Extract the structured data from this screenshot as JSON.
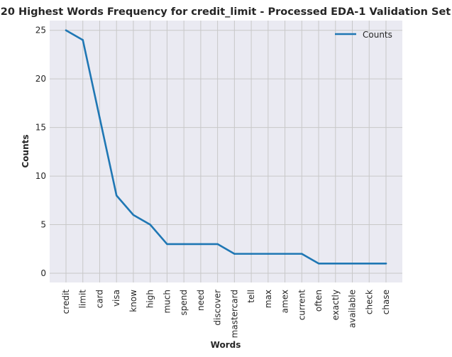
{
  "chart_data": {
    "type": "line",
    "title": "20 Highest Words Frequency for credit_limit - Processed EDA-1 Validation Set",
    "xlabel": "Words",
    "ylabel": "Counts",
    "ylim": [
      0,
      26
    ],
    "yticks": [
      0,
      5,
      10,
      15,
      20,
      25
    ],
    "grid": true,
    "legend_position": "top-right",
    "categories": [
      "credit",
      "limit",
      "card",
      "visa",
      "know",
      "high",
      "much",
      "spend",
      "need",
      "discover",
      "mastercard",
      "tell",
      "max",
      "amex",
      "current",
      "often",
      "exactly",
      "available",
      "check",
      "chase"
    ],
    "series": [
      {
        "name": "Counts",
        "color": "#1f77b4",
        "values": [
          25,
          24,
          16,
          8,
          6,
          5,
          3,
          3,
          3,
          3,
          2,
          2,
          2,
          2,
          2,
          1,
          1,
          1,
          1,
          1
        ]
      }
    ],
    "colors": {
      "plot_background": "#eaeaf2",
      "grid": "#c8c8c8",
      "text": "#262626"
    }
  }
}
